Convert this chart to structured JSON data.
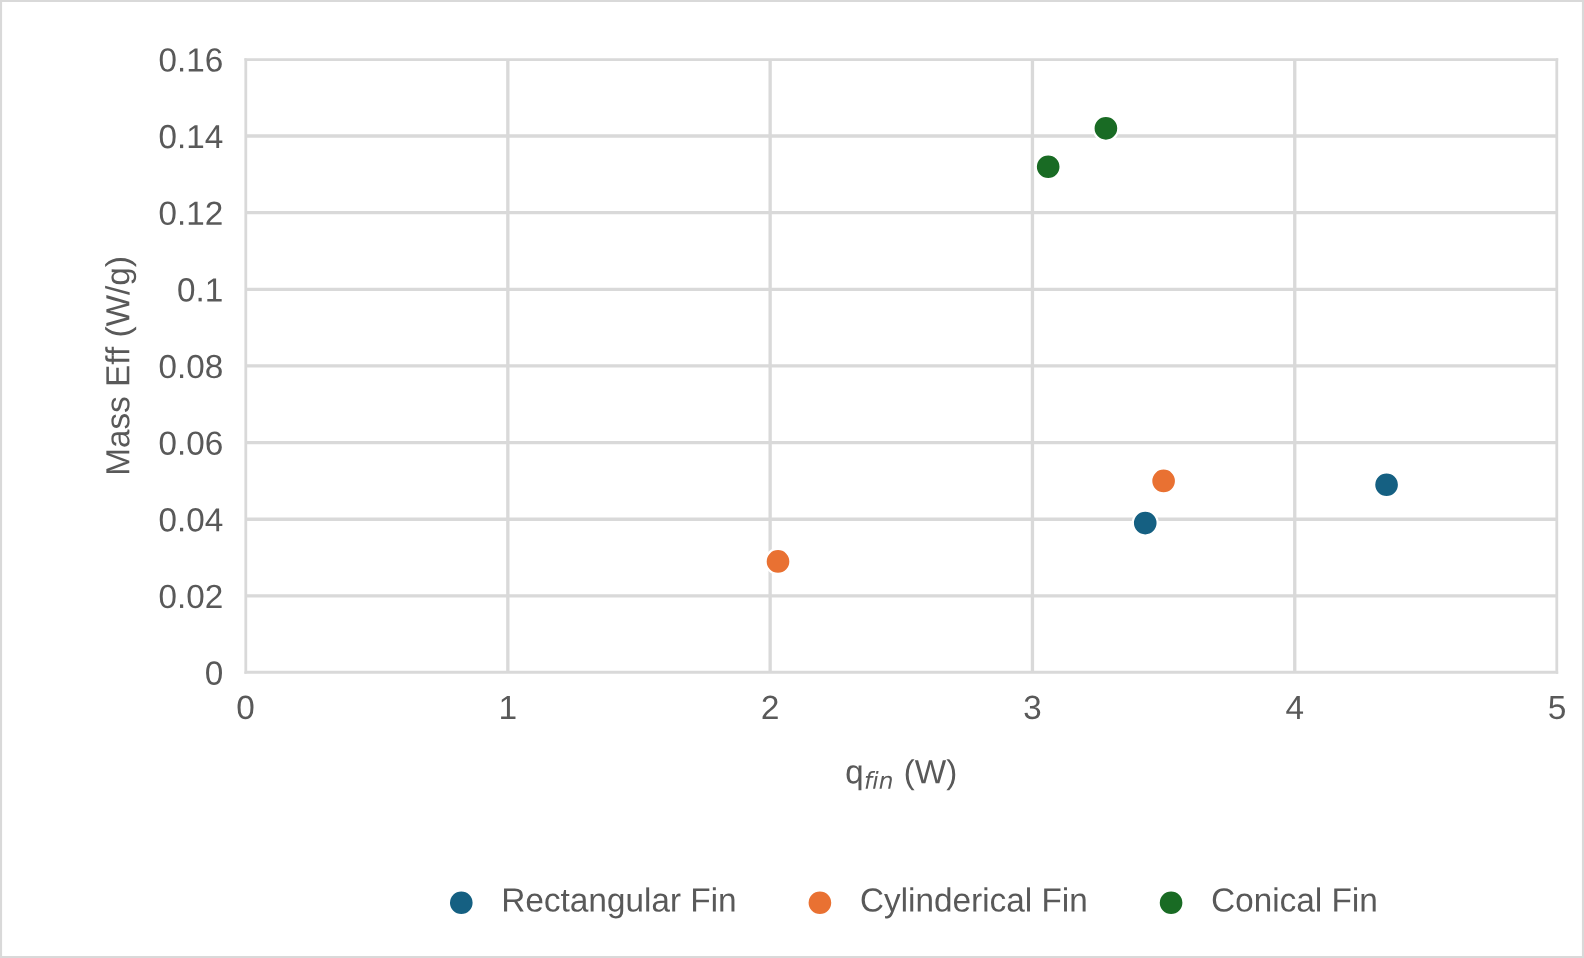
{
  "chart_data": {
    "type": "scatter",
    "xlabel": "q$_{fin}$ (W)",
    "ylabel": "Mass Eff (W/g)",
    "xlim": [
      0,
      5
    ],
    "xticks": [
      0,
      1,
      2,
      3,
      4,
      5
    ],
    "ylim": [
      0,
      0.16
    ],
    "yticks": [
      0,
      {
        "value": 0.02,
        "label": "0.02"
      },
      {
        "value": 0.04,
        "label": "0.04"
      },
      {
        "value": 0.06,
        "label": "0.06"
      },
      {
        "value": 0.08,
        "label": "0.08"
      },
      {
        "value": 0.1,
        "label": "0.1"
      },
      {
        "value": 0.12,
        "label": "0.12"
      },
      {
        "value": 0.14,
        "label": "0.14"
      },
      {
        "value": 0.16,
        "label": "0.16"
      }
    ],
    "grid": true,
    "legend": "bottom",
    "marker": "circle",
    "series": [
      {
        "name": "Rectangular Fin",
        "color": "#156082",
        "x": [
          3.43,
          4.35
        ],
        "values": [
          0.039,
          0.049
        ]
      },
      {
        "name": "Cylinderical Fin",
        "color": "#e97132",
        "x": [
          2.03,
          3.5
        ],
        "values": [
          0.029,
          0.05
        ]
      },
      {
        "name": "Conical Fin",
        "color": "#196b24",
        "x": [
          3.06,
          3.28
        ],
        "values": [
          0.132,
          0.142
        ]
      }
    ]
  }
}
